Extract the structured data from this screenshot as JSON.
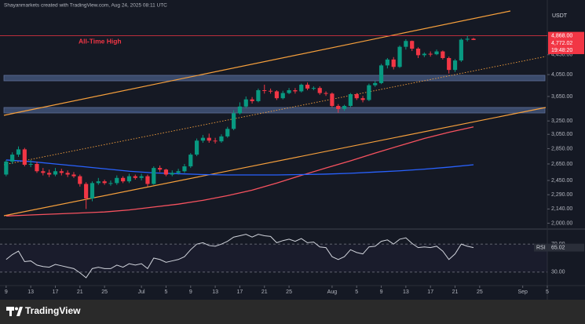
{
  "chart_data": {
    "type": "candlestick",
    "header": "Shayanmarkets created with TradingView.com, Aug 24, 2025 08:11 UTC",
    "currency": "USDT",
    "annotation": "All-Time High",
    "brand": "TradingView",
    "log_scale": true,
    "ylim": [
      1960,
      5600
    ],
    "yticks": [
      {
        "value": 4450,
        "label": "4,450.00"
      },
      {
        "value": 4050,
        "label": "4,050.00"
      },
      {
        "value": 3650,
        "label": "3,650.00"
      },
      {
        "value": 3250,
        "label": "3,250.00"
      },
      {
        "value": 3050,
        "label": "3,050.00"
      },
      {
        "value": 2850,
        "label": "2,850.00"
      },
      {
        "value": 2650,
        "label": "2,650.00"
      },
      {
        "value": 2450,
        "label": "2,450.00"
      },
      {
        "value": 2290,
        "label": "2,290.00"
      },
      {
        "value": 2140,
        "label": "2,140.00"
      },
      {
        "value": 2000,
        "label": "2,000.00"
      }
    ],
    "xlim": [
      -1,
      88
    ],
    "xticks": [
      {
        "value": 0,
        "label": "9"
      },
      {
        "value": 4,
        "label": "13"
      },
      {
        "value": 8,
        "label": "17"
      },
      {
        "value": 12,
        "label": "21"
      },
      {
        "value": 16,
        "label": "25"
      },
      {
        "value": 22,
        "label": "Jul"
      },
      {
        "value": 26,
        "label": "5"
      },
      {
        "value": 30,
        "label": "9"
      },
      {
        "value": 34,
        "label": "13"
      },
      {
        "value": 38,
        "label": "17"
      },
      {
        "value": 42,
        "label": "21"
      },
      {
        "value": 46,
        "label": "25"
      },
      {
        "value": 53,
        "label": "Aug"
      },
      {
        "value": 57,
        "label": "5"
      },
      {
        "value": 61,
        "label": "9"
      },
      {
        "value": 65,
        "label": "13"
      },
      {
        "value": 69,
        "label": "17"
      },
      {
        "value": 73,
        "label": "21"
      },
      {
        "value": 77,
        "label": "25"
      },
      {
        "value": 84,
        "label": "Sep"
      },
      {
        "value": 88,
        "label": "5"
      }
    ],
    "up_color": "#089981",
    "down_color": "#f23645",
    "open": [
      2520,
      2680,
      2770,
      2840,
      2640,
      2650,
      2560,
      2540,
      2520,
      2560,
      2540,
      2520,
      2500,
      2410,
      2250,
      2420,
      2440,
      2420,
      2420,
      2480,
      2440,
      2500,
      2480,
      2500,
      2410,
      2600,
      2580,
      2520,
      2540,
      2560,
      2620,
      2770,
      2960,
      3000,
      2960,
      2950,
      3020,
      3130,
      3370,
      3480,
      3600,
      3570,
      3760,
      3750,
      3740,
      3620,
      3710,
      3760,
      3740,
      3860,
      3790,
      3800,
      3710,
      3700,
      3490,
      3440,
      3490,
      3690,
      3620,
      3590,
      3850,
      3890,
      4230,
      4350,
      4200,
      4620,
      4750,
      4580,
      4440,
      4470,
      4460,
      4520,
      4380,
      4140,
      4330,
      4780,
      4800
    ],
    "high": [
      2700,
      2800,
      2880,
      2860,
      2700,
      2680,
      2600,
      2580,
      2600,
      2590,
      2570,
      2550,
      2520,
      2430,
      2440,
      2480,
      2460,
      2450,
      2510,
      2500,
      2530,
      2520,
      2530,
      2520,
      2620,
      2630,
      2590,
      2570,
      2590,
      2650,
      2790,
      2990,
      3040,
      3060,
      3000,
      3050,
      3160,
      3420,
      3550,
      3650,
      3640,
      3790,
      3860,
      3790,
      3760,
      3750,
      3800,
      3800,
      3880,
      3900,
      3830,
      3830,
      3740,
      3720,
      3520,
      3510,
      3710,
      3710,
      3660,
      3880,
      3930,
      4260,
      4380,
      4400,
      4650,
      4790,
      4760,
      4610,
      4500,
      4520,
      4560,
      4540,
      4410,
      4360,
      4810,
      4868,
      4820
    ],
    "low": [
      2500,
      2650,
      2740,
      2620,
      2610,
      2540,
      2510,
      2490,
      2500,
      2510,
      2490,
      2480,
      2380,
      2140,
      2220,
      2400,
      2400,
      2390,
      2400,
      2420,
      2420,
      2460,
      2450,
      2380,
      2400,
      2550,
      2500,
      2500,
      2520,
      2540,
      2600,
      2750,
      2930,
      2930,
      2920,
      2930,
      3000,
      3110,
      3350,
      3450,
      3530,
      3550,
      3700,
      3700,
      3590,
      3600,
      3690,
      3700,
      3720,
      3760,
      3760,
      3680,
      3660,
      3470,
      3380,
      3410,
      3470,
      3590,
      3550,
      3570,
      3820,
      3870,
      4170,
      4150,
      4180,
      4560,
      4530,
      4380,
      4400,
      4410,
      4440,
      4350,
      4070,
      4100,
      4300,
      4740,
      4770
    ],
    "close": [
      2680,
      2770,
      2840,
      2640,
      2650,
      2560,
      2540,
      2520,
      2560,
      2540,
      2520,
      2500,
      2410,
      2250,
      2420,
      2440,
      2420,
      2420,
      2480,
      2440,
      2500,
      2480,
      2500,
      2410,
      2600,
      2580,
      2520,
      2540,
      2560,
      2620,
      2770,
      2960,
      3000,
      2960,
      2950,
      3020,
      3130,
      3370,
      3480,
      3600,
      3570,
      3760,
      3750,
      3740,
      3620,
      3710,
      3760,
      3740,
      3860,
      3790,
      3800,
      3710,
      3700,
      3490,
      3440,
      3490,
      3690,
      3620,
      3590,
      3850,
      3890,
      4230,
      4350,
      4200,
      4620,
      4750,
      4580,
      4440,
      4470,
      4460,
      4520,
      4380,
      4140,
      4330,
      4780,
      4800,
      4772.02
    ],
    "price_tags": [
      {
        "value": 4868,
        "label": "4,868.00",
        "color": "#f23645"
      },
      {
        "value": 4772.02,
        "label": "4,772.02",
        "color": "#f23645"
      }
    ],
    "countdown": "19:48:20",
    "ma_lines": {
      "x": [
        0,
        4,
        8,
        12,
        16,
        20,
        24,
        28,
        32,
        36,
        40,
        44,
        48,
        52,
        56,
        60,
        64,
        68,
        72,
        76
      ],
      "series": [
        {
          "color": "#f7525f",
          "values": [
            2070,
            2080,
            2090,
            2100,
            2110,
            2130,
            2160,
            2190,
            2230,
            2280,
            2340,
            2420,
            2510,
            2600,
            2690,
            2790,
            2890,
            2990,
            3080,
            3160
          ]
        },
        {
          "color": "#2962ff",
          "values": [
            2700,
            2680,
            2650,
            2620,
            2590,
            2560,
            2540,
            2530,
            2520,
            2515,
            2515,
            2515,
            2520,
            2525,
            2535,
            2550,
            2565,
            2585,
            2610,
            2640
          ]
        }
      ]
    },
    "rsi": {
      "name": "RSI",
      "color": "#d1d4dc",
      "ylim": [
        13,
        87
      ],
      "yticks": [
        {
          "value": 70,
          "label": "70.00"
        },
        {
          "value": 30,
          "label": "30.00"
        }
      ],
      "values": [
        48,
        55,
        60,
        45,
        46,
        40,
        38,
        37,
        41,
        39,
        37,
        35,
        29,
        22,
        35,
        37,
        35,
        35,
        40,
        37,
        42,
        40,
        42,
        35,
        50,
        48,
        44,
        46,
        48,
        52,
        62,
        70,
        72,
        68,
        67,
        70,
        74,
        80,
        82,
        84,
        80,
        84,
        82,
        81,
        72,
        75,
        77,
        74,
        78,
        72,
        73,
        66,
        65,
        52,
        48,
        52,
        62,
        58,
        56,
        66,
        67,
        74,
        76,
        70,
        77,
        79,
        71,
        65,
        66,
        65,
        67,
        60,
        48,
        56,
        70,
        67,
        65.02
      ]
    }
  }
}
